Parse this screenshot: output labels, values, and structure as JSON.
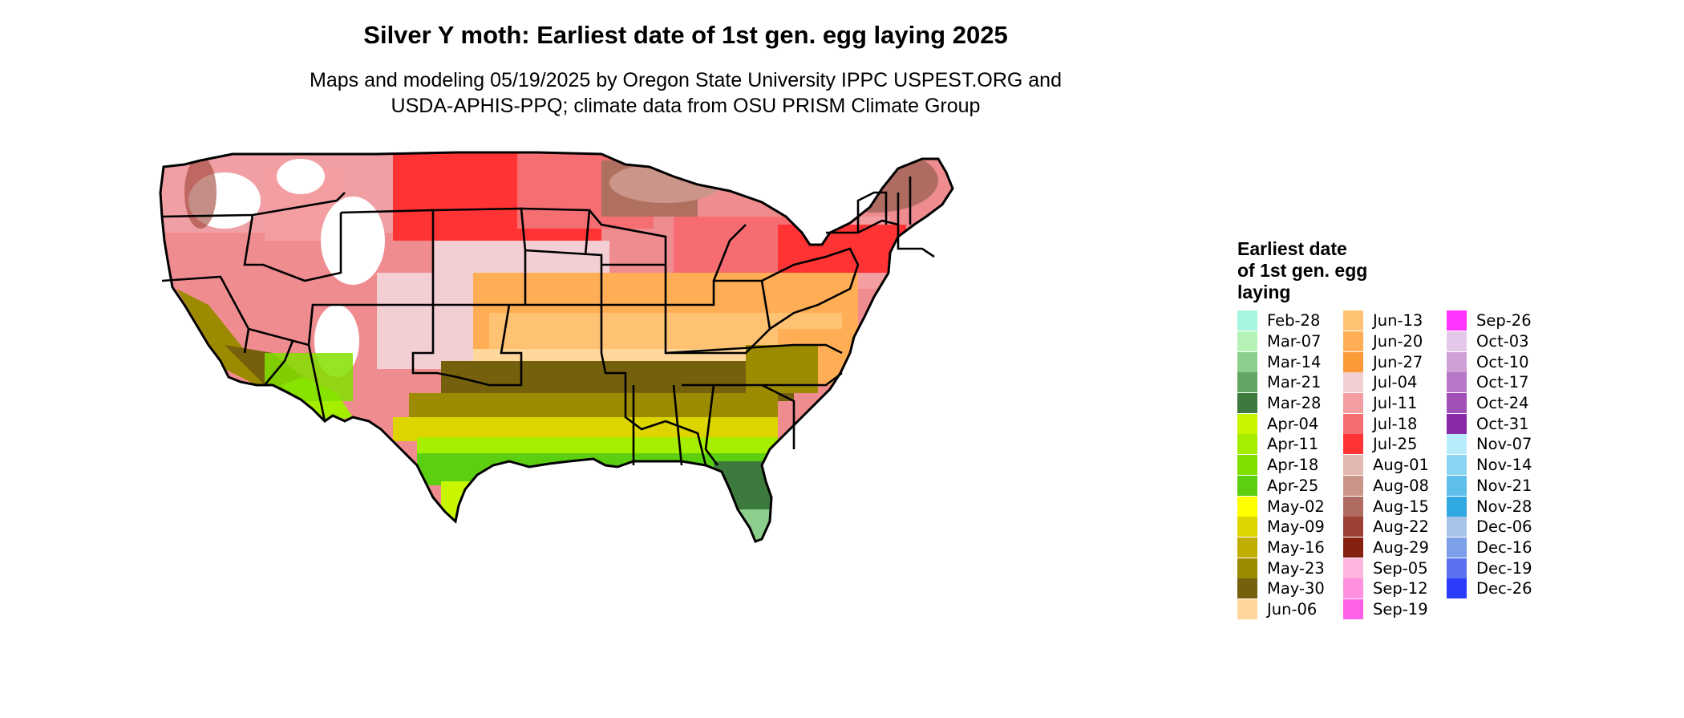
{
  "title": "Silver Y moth: Earliest date of 1st gen. egg laying 2025",
  "subtitle_line1": "Maps and modeling 05/19/2025 by Oregon State University IPPC USPEST.ORG and",
  "subtitle_line2": "USDA-APHIS-PPQ; climate data from OSU PRISM Climate Group",
  "legend": {
    "title_line1": "Earliest date",
    "title_line2": "of 1st gen. egg",
    "title_line3": "laying",
    "items": [
      {
        "label": "Feb-28",
        "color": "#a6f5e0"
      },
      {
        "label": "Mar-07",
        "color": "#b5f2b5"
      },
      {
        "label": "Mar-14",
        "color": "#8ccf8c"
      },
      {
        "label": "Mar-21",
        "color": "#63a663"
      },
      {
        "label": "Mar-28",
        "color": "#3d7a3d"
      },
      {
        "label": "Apr-04",
        "color": "#c8f500"
      },
      {
        "label": "Apr-11",
        "color": "#a6ee00"
      },
      {
        "label": "Apr-18",
        "color": "#82e000"
      },
      {
        "label": "Apr-25",
        "color": "#5ccf10"
      },
      {
        "label": "May-02",
        "color": "#ffff00"
      },
      {
        "label": "May-09",
        "color": "#ddd400"
      },
      {
        "label": "May-16",
        "color": "#bfae00"
      },
      {
        "label": "May-23",
        "color": "#9c8a00"
      },
      {
        "label": "May-30",
        "color": "#74600d"
      },
      {
        "label": "Jun-06",
        "color": "#ffd79a"
      },
      {
        "label": "Jun-13",
        "color": "#ffc273"
      },
      {
        "label": "Jun-20",
        "color": "#ffae55"
      },
      {
        "label": "Jun-27",
        "color": "#fb9a36"
      },
      {
        "label": "Jul-04",
        "color": "#f3cfd3"
      },
      {
        "label": "Jul-11",
        "color": "#f49ea2"
      },
      {
        "label": "Jul-18",
        "color": "#f66c71"
      },
      {
        "label": "Jul-25",
        "color": "#ff3333"
      },
      {
        "label": "Aug-01",
        "color": "#e3b8b0"
      },
      {
        "label": "Aug-08",
        "color": "#cc958a"
      },
      {
        "label": "Aug-15",
        "color": "#b06c62"
      },
      {
        "label": "Aug-22",
        "color": "#9c4235"
      },
      {
        "label": "Aug-29",
        "color": "#862010"
      },
      {
        "label": "Sep-05",
        "color": "#ffb5de"
      },
      {
        "label": "Sep-12",
        "color": "#ff8fe0"
      },
      {
        "label": "Sep-19",
        "color": "#ff60e6"
      },
      {
        "label": "Sep-26",
        "color": "#ff33ff"
      },
      {
        "label": "Oct-03",
        "color": "#e4c8ea"
      },
      {
        "label": "Oct-10",
        "color": "#cfa0d8"
      },
      {
        "label": "Oct-17",
        "color": "#b878c8"
      },
      {
        "label": "Oct-24",
        "color": "#a050b8"
      },
      {
        "label": "Oct-31",
        "color": "#8a28a8"
      },
      {
        "label": "Nov-07",
        "color": "#b8ecfb"
      },
      {
        "label": "Nov-14",
        "color": "#8ad6f2"
      },
      {
        "label": "Nov-21",
        "color": "#5ec0ea"
      },
      {
        "label": "Nov-28",
        "color": "#30a8e0"
      },
      {
        "label": "Dec-06",
        "color": "#a6c3e8"
      },
      {
        "label": "Dec-16",
        "color": "#7d9ee8"
      },
      {
        "label": "Dec-19",
        "color": "#5a70f0"
      },
      {
        "label": "Dec-26",
        "color": "#2a3cf8"
      }
    ]
  }
}
